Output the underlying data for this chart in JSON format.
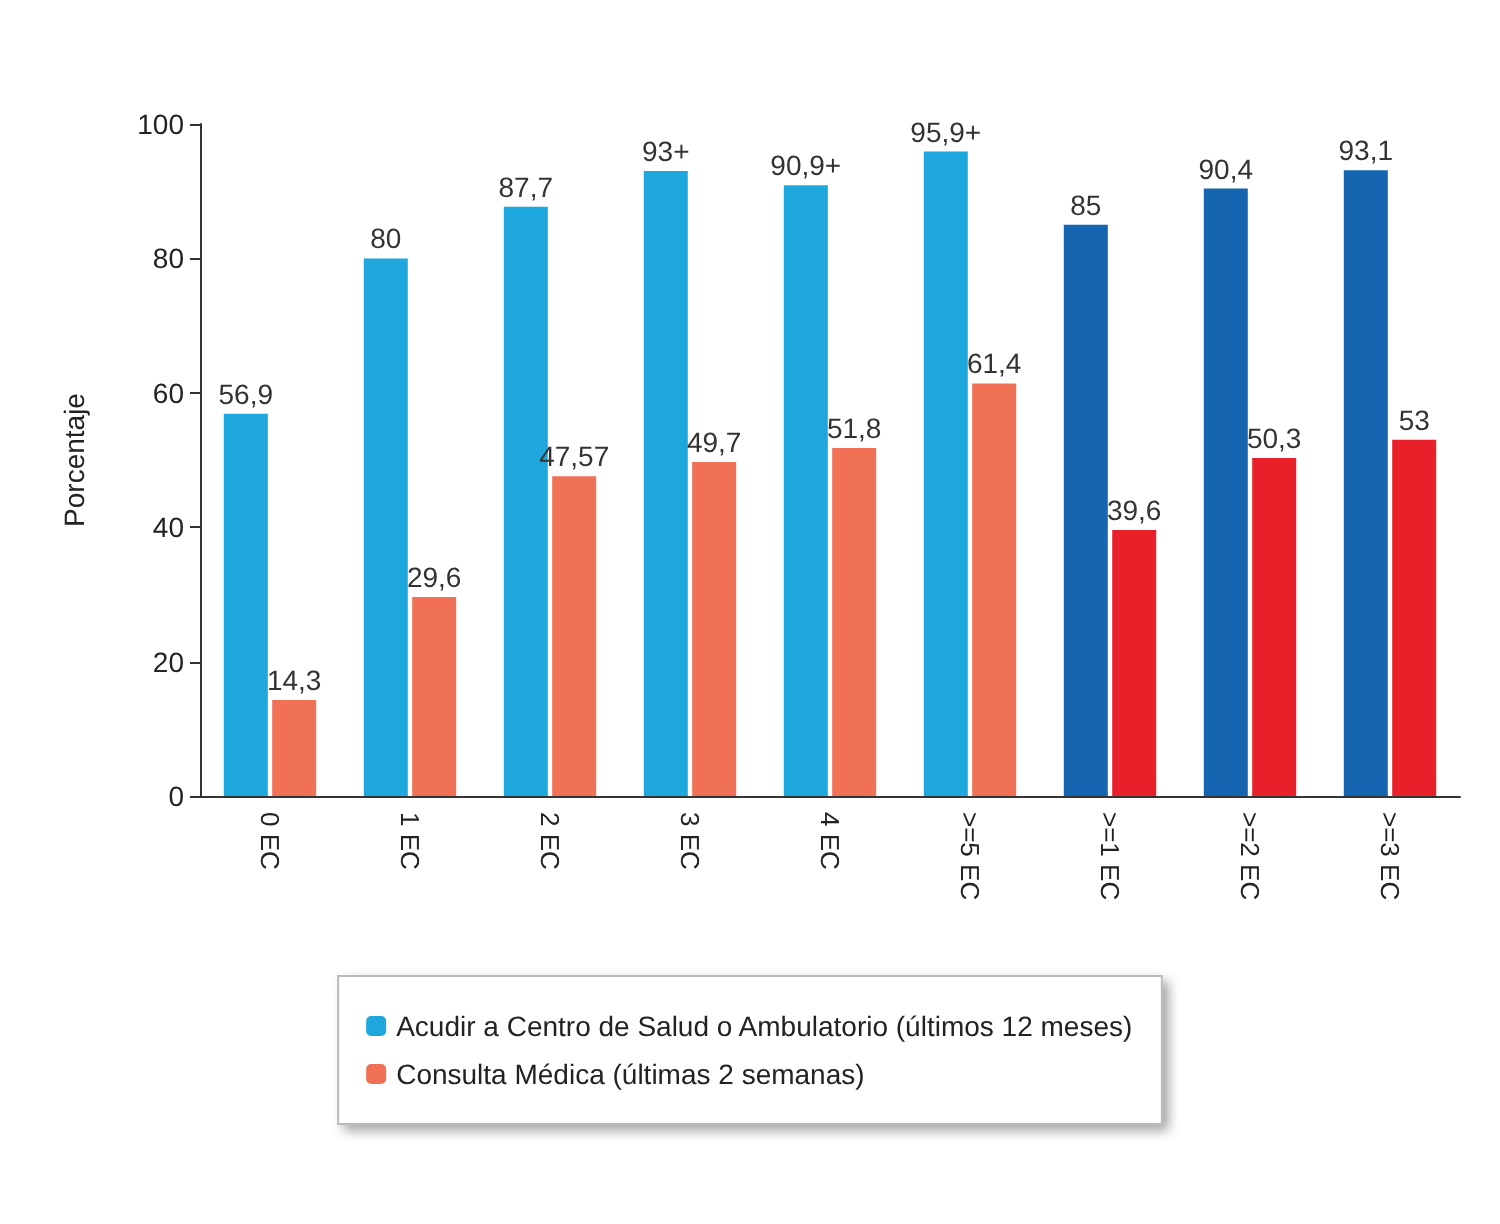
{
  "chart_data": {
    "type": "bar",
    "ylabel": "Porcentaje",
    "categories": [
      "0 EC",
      "1 EC",
      "2 EC",
      "3 EC",
      "4 EC",
      ">=5 EC",
      ">=1 EC",
      ">=2 EC",
      ">=3 EC"
    ],
    "series": [
      {
        "name": "Acudir a Centro de Salud o Ambulatorio (últimos 12 meses)",
        "color": "#1ea7dc",
        "colors": [
          "#1ea7dc",
          "#1ea7dc",
          "#1ea7dc",
          "#1ea7dc",
          "#1ea7dc",
          "#1ea7dc",
          "#1565b0",
          "#1565b0",
          "#1565b0"
        ],
        "values": [
          56.9,
          80,
          87.7,
          93,
          90.9,
          95.9,
          85,
          90.4,
          93.1
        ],
        "value_labels": [
          "56,9",
          "80",
          "87,7",
          "93+",
          "90,9+",
          "95,9+",
          "85",
          "90,4",
          "93,1"
        ]
      },
      {
        "name": "Consulta Médica (últimas 2 semanas)",
        "color": "#f07156",
        "colors": [
          "#f07156",
          "#f07156",
          "#f07156",
          "#f07156",
          "#f07156",
          "#f07156",
          "#e8202a",
          "#e8202a",
          "#e8202a"
        ],
        "values": [
          14.3,
          29.6,
          47.57,
          49.7,
          51.8,
          61.4,
          39.6,
          50.3,
          53
        ],
        "value_labels": [
          "14,3",
          "29,6",
          "47,57",
          "49,7",
          "51,8",
          "61,4",
          "39,6",
          "50,3",
          "53"
        ]
      }
    ],
    "ylim": [
      0,
      100
    ],
    "yticks": [
      0,
      20,
      40,
      60,
      80,
      100
    ],
    "grid": false,
    "legend": "bottom"
  }
}
